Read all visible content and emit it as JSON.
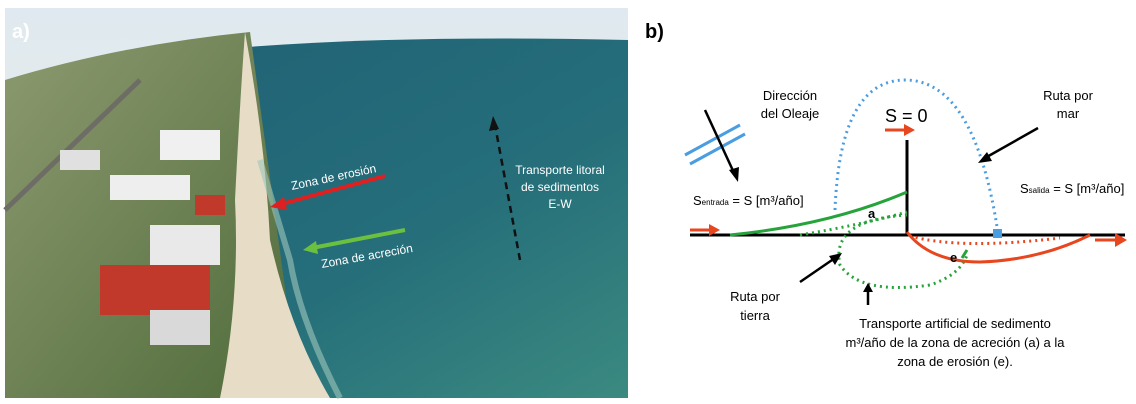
{
  "panel_a": {
    "label": "a)",
    "erosion_label": "Zona de erosión",
    "accretion_label": "Zona de acreción",
    "transport_label": [
      "Transporte litoral",
      "de sedimentos",
      "E-W"
    ]
  },
  "panel_b": {
    "label": "b)",
    "wave_direction": [
      "Dirección",
      "del Oleaje"
    ],
    "s_zero": "S = 0",
    "sea_route": [
      "Ruta por",
      "mar"
    ],
    "inflow": {
      "symbol": "S",
      "subscript": "entrada",
      "rest": " = S [m³/año]"
    },
    "outflow": {
      "symbol": "S",
      "subscript": "salida",
      "rest": " = S [m³/año]"
    },
    "point_a": "a",
    "point_e": "e",
    "land_route": [
      "Ruta por",
      "tierra"
    ],
    "artificial_transport": [
      "Transporte artificial de sedimento",
      "m³/año de la zona de acreción (a) a la",
      "zona de erosión (e)."
    ]
  }
}
